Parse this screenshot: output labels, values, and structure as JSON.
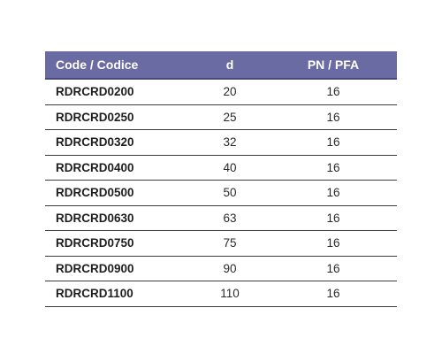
{
  "colors": {
    "header_background": "#6b6ba3",
    "header_text": "#ffffff",
    "row_divider": "#3c3c3c"
  },
  "table": {
    "headers": {
      "code": "Code / Codice",
      "d": "d",
      "pn": "PN / PFA"
    },
    "rows": [
      {
        "code": "RDRCRD0200",
        "d": "20",
        "pn": "16"
      },
      {
        "code": "RDRCRD0250",
        "d": "25",
        "pn": "16"
      },
      {
        "code": "RDRCRD0320",
        "d": "32",
        "pn": "16"
      },
      {
        "code": "RDRCRD0400",
        "d": "40",
        "pn": "16"
      },
      {
        "code": "RDRCRD0500",
        "d": "50",
        "pn": "16"
      },
      {
        "code": "RDRCRD0630",
        "d": "63",
        "pn": "16"
      },
      {
        "code": "RDRCRD0750",
        "d": "75",
        "pn": "16"
      },
      {
        "code": "RDRCRD0900",
        "d": "90",
        "pn": "16"
      },
      {
        "code": "RDRCRD1100",
        "d": "110",
        "pn": "16"
      }
    ]
  }
}
